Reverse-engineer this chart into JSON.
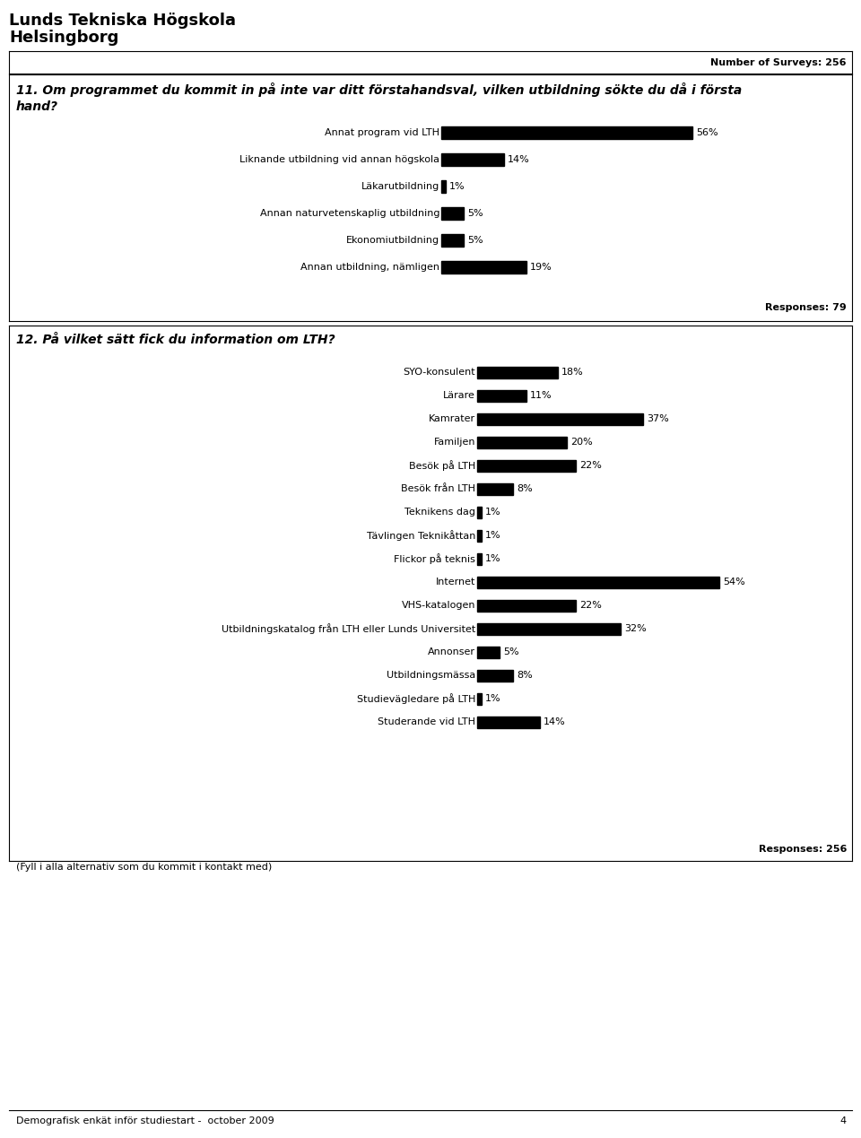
{
  "title_line1": "Lunds Tekniska Högskola",
  "title_line2": "Helsingborg",
  "footer": "Demografisk enkät inför studiestart -  october 2009",
  "footer_page": "4",
  "q11_text_line1": "11. Om programmet du kommit in på inte var ditt förstahandsval, vilken utbildning sökte du då i första",
  "q11_text_line2": "hand?",
  "q11_responses_label": "Responses: 79",
  "q11_number_of_surveys": "Number of Surveys: 256",
  "q11_categories": [
    "Annat program vid LTH",
    "Liknande utbildning vid annan högskola",
    "Läkarutbildning",
    "Annan naturvetenskaplig utbildning",
    "Ekonomiutbildning",
    "Annan utbildning, nämligen"
  ],
  "q11_values": [
    56,
    14,
    1,
    5,
    5,
    19
  ],
  "q12_text": "12. På vilket sätt fick du information om LTH?",
  "q12_responses_label": "Responses: 256",
  "q12_note": "(Fyll i alla alternativ som du kommit i kontakt med)",
  "q12_categories": [
    "SYO-konsulent",
    "Lärare",
    "Kamrater",
    "Familjen",
    "Besök på LTH",
    "Besök från LTH",
    "Teknikens dag",
    "Tävlingen Teknikåttan",
    "Flickor på teknis",
    "Internet",
    "VHS-katalogen",
    "Utbildningskatalog från LTH eller Lunds Universitet",
    "Annonser",
    "Utbildningsmässa",
    "Studievägledare på LTH",
    "Studerande vid LTH"
  ],
  "q12_values": [
    18,
    11,
    37,
    20,
    22,
    8,
    1,
    1,
    1,
    54,
    22,
    32,
    5,
    8,
    1,
    14
  ],
  "bar_color": "#000000",
  "bg_color": "#ffffff",
  "text_color": "#000000",
  "border_color": "#000000"
}
